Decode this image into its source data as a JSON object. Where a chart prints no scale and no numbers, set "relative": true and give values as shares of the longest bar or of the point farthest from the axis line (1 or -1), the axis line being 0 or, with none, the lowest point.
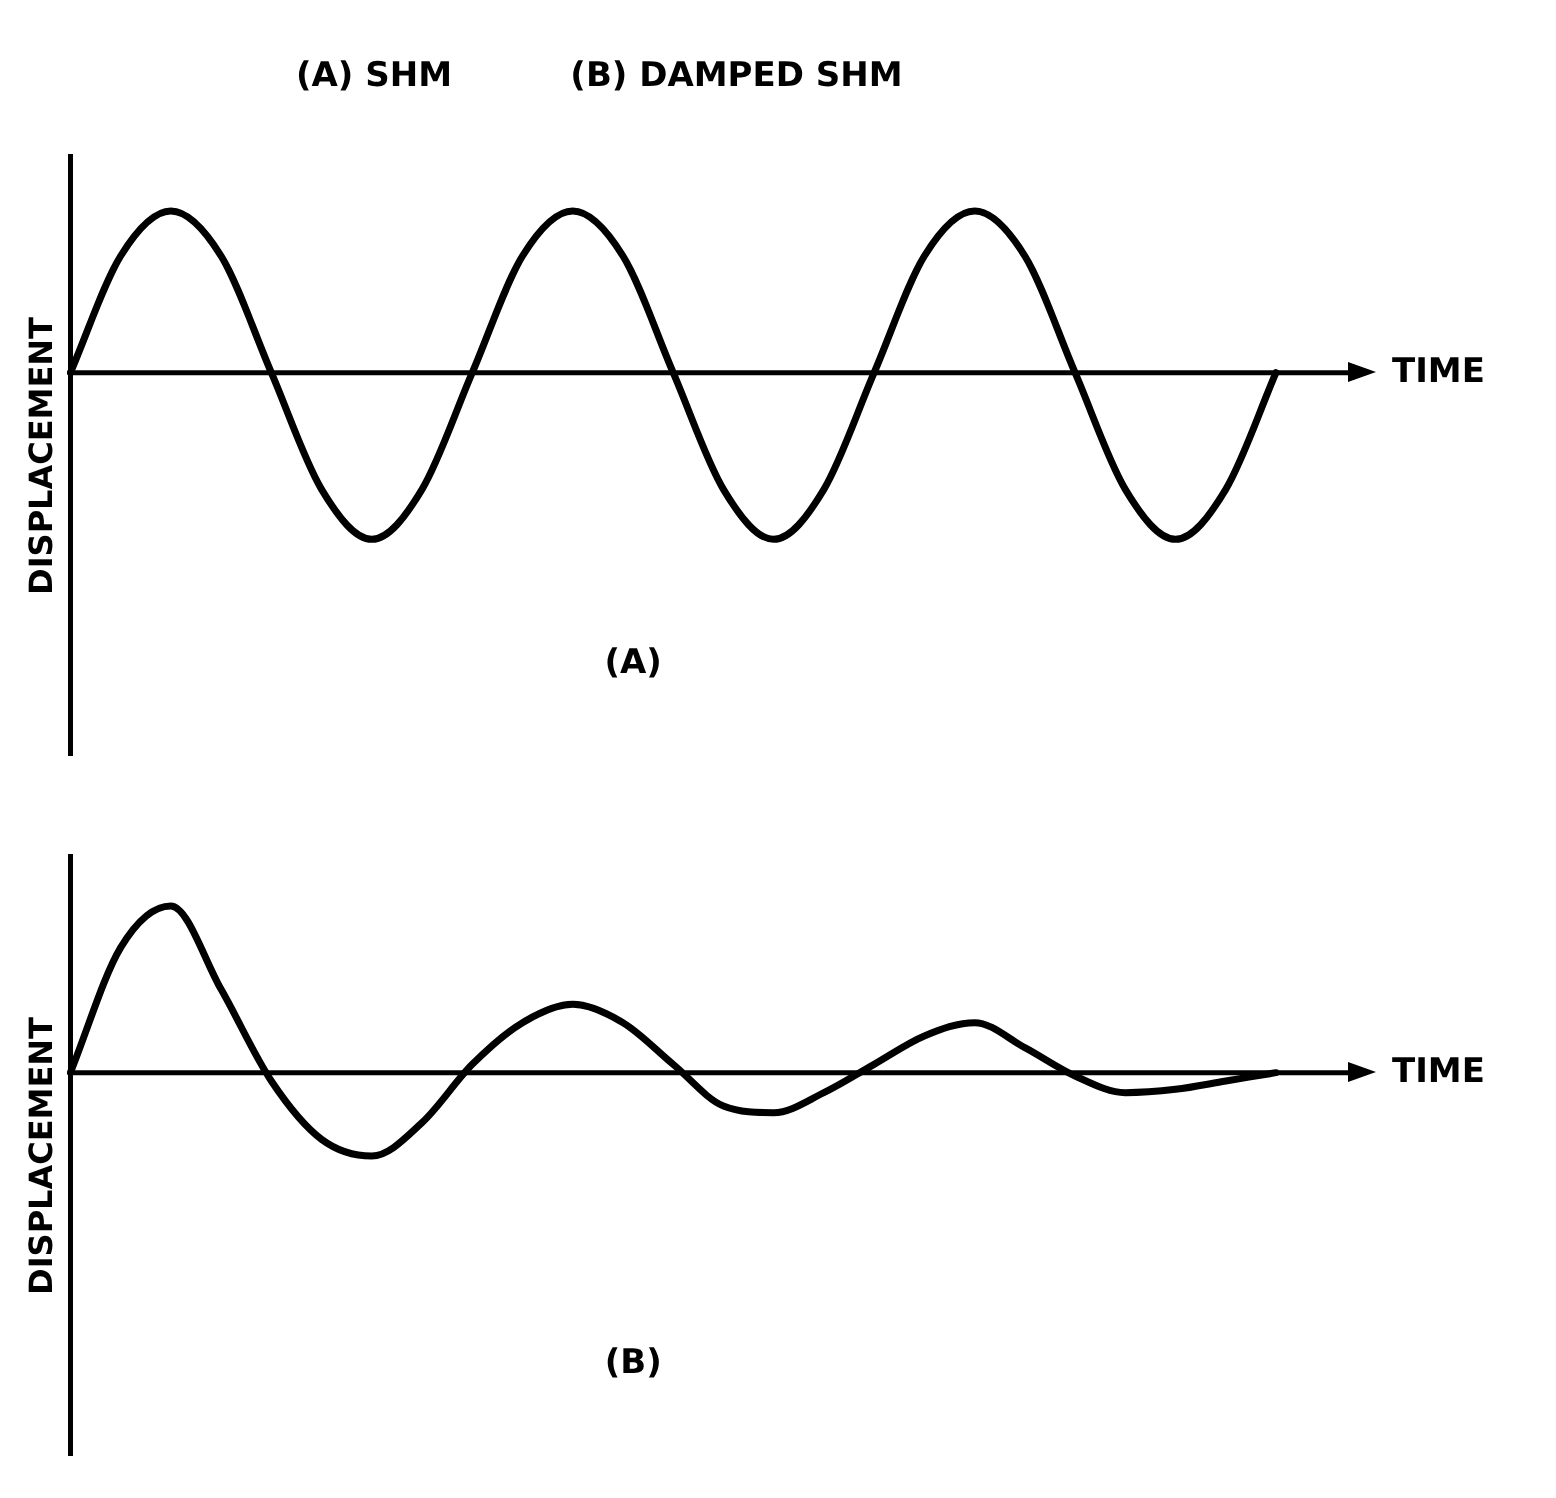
{
  "chart_data": [
    {
      "type": "line",
      "title": "(A) SHM          (B) DAMPED SHM",
      "xlabel": "TIME",
      "ylabel": "DISPLACEMENT",
      "relative": true,
      "grid": false,
      "legend": false,
      "marker": "none",
      "annotations": [
        "(A)"
      ],
      "categories": [
        null,
        null,
        null,
        null,
        null,
        null,
        null,
        null,
        null,
        null,
        null,
        null,
        null,
        null,
        null,
        null,
        null,
        null,
        null,
        null,
        null,
        null,
        null,
        null,
        null
      ],
      "series": [
        {
          "color": "#000000",
          "values": [
            0,
            0.7,
            0.97,
            0.7,
            0,
            -0.7,
            -1,
            -0.7,
            0,
            0.7,
            0.97,
            0.7,
            0,
            -0.7,
            -1,
            -0.7,
            0,
            0.7,
            0.97,
            0.7,
            0,
            -0.7,
            -1,
            -0.7,
            0
          ]
        }
      ]
    },
    {
      "type": "line",
      "xlabel": "TIME",
      "ylabel": "DISPLACEMENT",
      "relative": true,
      "grid": false,
      "legend": false,
      "marker": "none",
      "annotations": [
        "(B)"
      ],
      "categories": [
        null,
        null,
        null,
        null,
        null,
        null,
        null,
        null,
        null,
        null,
        null,
        null,
        null,
        null,
        null,
        null,
        null,
        null,
        null,
        null,
        null,
        null,
        null,
        null,
        null
      ],
      "series": [
        {
          "color": "#000000",
          "values": [
            0,
            0.75,
            1,
            0.5,
            -0.05,
            -0.4,
            -0.5,
            -0.3,
            0.05,
            0.3,
            0.41,
            0.3,
            0.05,
            -0.2,
            -0.24,
            -0.12,
            0.05,
            0.22,
            0.3,
            0.15,
            -0.02,
            -0.12,
            -0.1,
            -0.05,
            0
          ]
        }
      ]
    }
  ]
}
